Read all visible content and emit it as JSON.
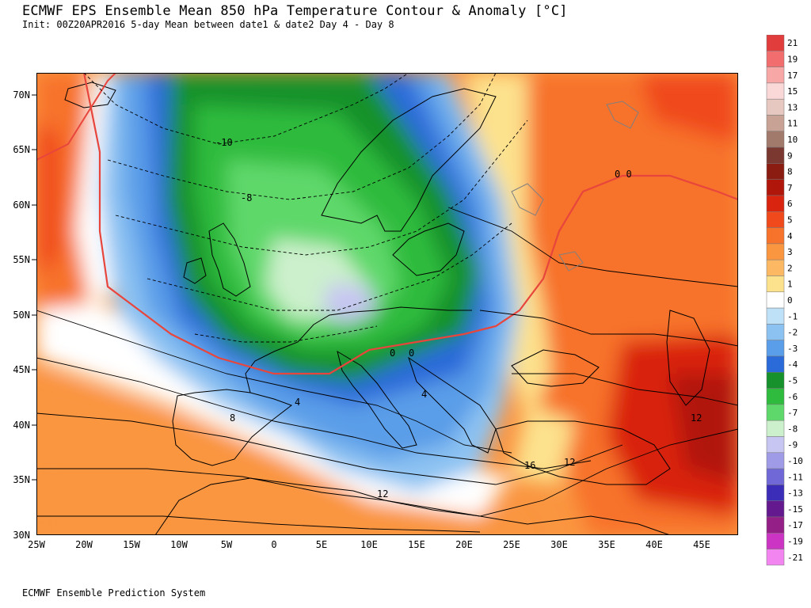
{
  "header": {
    "title": "ECMWF EPS Ensemble Mean 850 hPa Temperature Contour & Anomaly [°C]",
    "subtitle": "Init: 00Z20APR2016 5-day Mean between date1 & date2   Day 4 - Day 8"
  },
  "footer": {
    "text": "ECMWF Ensemble Prediction System"
  },
  "map": {
    "lat_labels": [
      "70N",
      "65N",
      "60N",
      "55N",
      "50N",
      "45N",
      "40N",
      "35N",
      "30N"
    ],
    "lon_labels": [
      "25W",
      "20W",
      "15W",
      "10W",
      "5W",
      "0",
      "5E",
      "10E",
      "15E",
      "20E",
      "25E",
      "30E",
      "35E",
      "40E",
      "45E"
    ],
    "contour_labels": [
      "-10",
      "-8",
      "0",
      "0 0",
      "0",
      "4",
      "4",
      "8",
      "12",
      "12",
      "12",
      "16"
    ],
    "colors": {
      "land_outline": "#000000",
      "zero_anomaly_line": "#e8453c",
      "lakes": "#808080"
    }
  },
  "colorbar": {
    "levels": [
      {
        "label": "21",
        "color": "#e23d3d"
      },
      {
        "label": "19",
        "color": "#f26d6d"
      },
      {
        "label": "17",
        "color": "#f8a7a7"
      },
      {
        "label": "15",
        "color": "#fad8d8"
      },
      {
        "label": "13",
        "color": "#e7c8c0"
      },
      {
        "label": "11",
        "color": "#c8a295"
      },
      {
        "label": "10",
        "color": "#a27a6c"
      },
      {
        "label": "9",
        "color": "#7a3830"
      },
      {
        "label": "8",
        "color": "#8b1c12"
      },
      {
        "label": "7",
        "color": "#b1160b"
      },
      {
        "label": "6",
        "color": "#d92410"
      },
      {
        "label": "5",
        "color": "#f04a1c"
      },
      {
        "label": "4",
        "color": "#f7722a"
      },
      {
        "label": "3",
        "color": "#fa9540"
      },
      {
        "label": "2",
        "color": "#fcb863"
      },
      {
        "label": "1",
        "color": "#fde28d"
      },
      {
        "label": "0",
        "color": "#ffffff"
      },
      {
        "label": "-1",
        "color": "#bfe1f7"
      },
      {
        "label": "-2",
        "color": "#8cc2f2"
      },
      {
        "label": "-3",
        "color": "#5a9de8"
      },
      {
        "label": "-4",
        "color": "#2a6ad9"
      },
      {
        "label": "-5",
        "color": "#17912c"
      },
      {
        "label": "-6",
        "color": "#2fbb3e"
      },
      {
        "label": "-7",
        "color": "#5ed86a"
      },
      {
        "label": "-8",
        "color": "#ccf0cc"
      },
      {
        "label": "-9",
        "color": "#c7c6f2"
      },
      {
        "label": "-10",
        "color": "#9f9be6"
      },
      {
        "label": "-11",
        "color": "#6f68d6"
      },
      {
        "label": "-13",
        "color": "#3c2db8"
      },
      {
        "label": "-15",
        "color": "#641a8e"
      },
      {
        "label": "-17",
        "color": "#941f86"
      },
      {
        "label": "-19",
        "color": "#cc35c4"
      },
      {
        "label": "-21",
        "color": "#f285ef"
      }
    ]
  }
}
